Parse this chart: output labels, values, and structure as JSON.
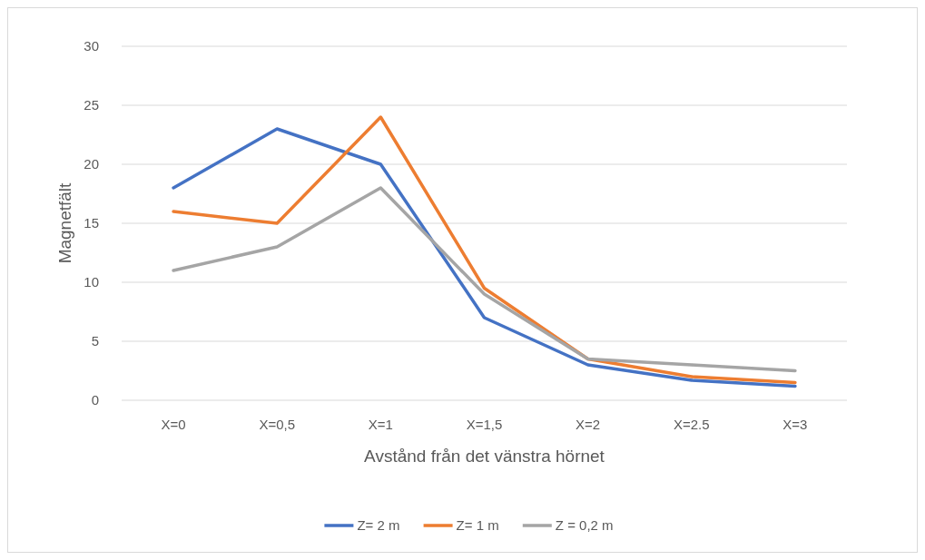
{
  "chart_data": {
    "type": "line",
    "xlabel": "Avstånd från det vänstra hörnet",
    "ylabel": "Magnetfält",
    "categories": [
      "X=0",
      "X=0,5",
      "X=1",
      "X=1,5",
      "X=2",
      "X=2.5",
      "X=3"
    ],
    "series": [
      {
        "name": "Z= 2 m",
        "color": "#4472c4",
        "values": [
          18,
          23,
          20,
          7,
          3,
          1.7,
          1.2
        ]
      },
      {
        "name": "Z= 1 m",
        "color": "#ed7d31",
        "values": [
          16,
          15,
          24,
          9.5,
          3.5,
          2,
          1.5
        ]
      },
      {
        "name": "Z = 0,2 m",
        "color": "#a5a5a5",
        "values": [
          11,
          13,
          18,
          9,
          3.5,
          3,
          2.5
        ]
      }
    ],
    "ylim": [
      0,
      30
    ],
    "yticks": [
      0,
      5,
      10,
      15,
      20,
      25,
      30
    ],
    "grid": "y",
    "legend": "bottom",
    "marker": "none",
    "line_style": "solid"
  }
}
